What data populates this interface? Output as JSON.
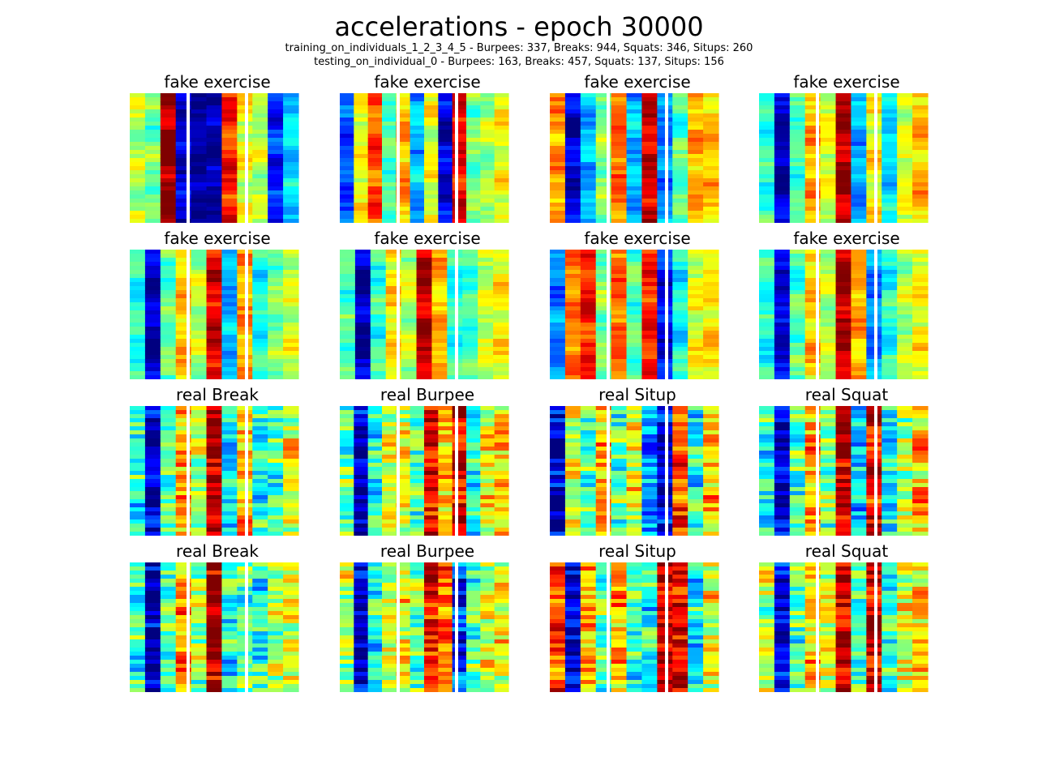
{
  "figure": {
    "title": "accelerations - epoch 30000",
    "subtitle_line1": "training_on_individuals_1_2_3_4_5 - Burpees: 337, Breaks: 944, Squats: 346, Situps: 260",
    "subtitle_line2": "testing_on_individual_0 - Burpees: 163, Breaks: 457, Squats: 137, Situps: 156"
  },
  "chart_data": {
    "type": "heatmap",
    "colormap": "jet",
    "grid": false,
    "axes_visible": false,
    "value_range": [
      0,
      1
    ],
    "layout": "4 rows x 4 columns of panels",
    "channel_groups_per_panel": 3,
    "channels_per_group": 3,
    "panels": [
      {
        "title": "fake exercise",
        "columns": [
          0.55,
          0.48,
          0.98,
          0.08,
          0.04,
          0.05,
          0.85,
          0.6,
          0.55,
          0.15,
          0.35
        ]
      },
      {
        "title": "fake exercise",
        "columns": [
          0.2,
          0.62,
          0.8,
          0.45,
          0.7,
          0.3,
          0.6,
          0.1,
          0.88,
          0.5,
          0.55,
          0.62
        ]
      },
      {
        "title": "fake exercise",
        "columns": [
          0.72,
          0.08,
          0.3,
          0.52,
          0.78,
          0.3,
          0.92,
          0.25,
          0.45,
          0.7,
          0.68
        ]
      },
      {
        "title": "fake exercise",
        "columns": [
          0.42,
          0.05,
          0.45,
          0.7,
          0.6,
          0.95,
          0.3,
          0.62,
          0.35,
          0.6,
          0.7
        ]
      },
      {
        "title": "fake exercise",
        "columns": [
          0.4,
          0.05,
          0.45,
          0.68,
          0.55,
          0.9,
          0.3,
          0.7,
          0.4,
          0.5,
          0.58
        ]
      },
      {
        "title": "fake exercise",
        "columns": [
          0.45,
          0.04,
          0.42,
          0.65,
          0.55,
          0.95,
          0.7,
          0.4,
          0.45,
          0.58,
          0.62
        ]
      },
      {
        "title": "fake exercise",
        "columns": [
          0.25,
          0.75,
          0.85,
          0.5,
          0.78,
          0.45,
          0.85,
          0.12,
          0.38,
          0.6,
          0.65
        ]
      },
      {
        "title": "fake exercise",
        "columns": [
          0.4,
          0.08,
          0.45,
          0.68,
          0.55,
          0.95,
          0.7,
          0.25,
          0.4,
          0.55,
          0.62
        ]
      },
      {
        "title": "real Break",
        "columns": [
          0.4,
          0.04,
          0.45,
          0.72,
          0.55,
          0.96,
          0.35,
          0.68,
          0.4,
          0.45,
          0.6
        ]
      },
      {
        "title": "real Burpee",
        "columns": [
          0.45,
          0.05,
          0.38,
          0.58,
          0.6,
          0.45,
          0.9,
          0.7,
          0.92,
          0.4,
          0.62,
          0.66
        ]
      },
      {
        "title": "real Situp",
        "columns": [
          0.08,
          0.55,
          0.45,
          0.72,
          0.45,
          0.6,
          0.25,
          0.1,
          0.8,
          0.38,
          0.68
        ]
      },
      {
        "title": "real Squat",
        "columns": [
          0.4,
          0.05,
          0.45,
          0.72,
          0.5,
          0.95,
          0.35,
          0.9,
          0.35,
          0.55,
          0.68
        ]
      },
      {
        "title": "real Break",
        "columns": [
          0.42,
          0.04,
          0.45,
          0.72,
          0.52,
          0.96,
          0.38,
          0.45,
          0.4,
          0.52,
          0.62
        ]
      },
      {
        "title": "real Burpee",
        "columns": [
          0.55,
          0.05,
          0.4,
          0.58,
          0.62,
          0.48,
          0.85,
          0.78,
          0.15,
          0.45,
          0.6,
          0.62
        ]
      },
      {
        "title": "real Situp",
        "columns": [
          0.78,
          0.08,
          0.7,
          0.48,
          0.72,
          0.42,
          0.4,
          0.92,
          0.9,
          0.38,
          0.62
        ]
      },
      {
        "title": "real Squat",
        "columns": [
          0.55,
          0.08,
          0.45,
          0.7,
          0.6,
          0.92,
          0.45,
          0.92,
          0.4,
          0.58,
          0.65
        ]
      }
    ]
  }
}
